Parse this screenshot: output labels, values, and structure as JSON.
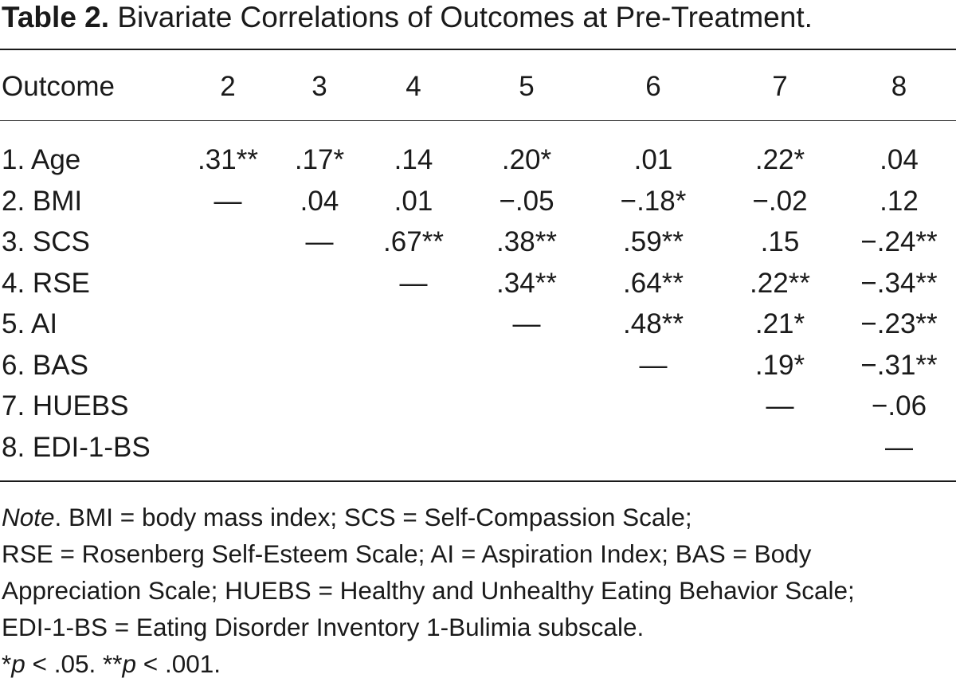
{
  "title": {
    "label": "Table 2.",
    "text": "Bivariate Correlations of Outcomes at Pre-Treatment."
  },
  "table": {
    "header": [
      "Outcome",
      "2",
      "3",
      "4",
      "5",
      "6",
      "7",
      "8"
    ],
    "rows": [
      {
        "outcome": "1. Age",
        "cells": [
          ".31**",
          ".17*",
          ".14",
          ".20*",
          ".01",
          ".22*",
          ".04"
        ]
      },
      {
        "outcome": "2. BMI",
        "cells": [
          "—",
          ".04",
          ".01",
          "−.05",
          "−.18*",
          "−.02",
          ".12"
        ]
      },
      {
        "outcome": "3. SCS",
        "cells": [
          "",
          "—",
          ".67**",
          ".38**",
          ".59**",
          ".15",
          "−.24**"
        ]
      },
      {
        "outcome": "4. RSE",
        "cells": [
          "",
          "",
          "—",
          ".34**",
          ".64**",
          ".22**",
          "−.34**"
        ]
      },
      {
        "outcome": "5. AI",
        "cells": [
          "",
          "",
          "",
          "—",
          ".48**",
          ".21*",
          "−.23**"
        ]
      },
      {
        "outcome": "6. BAS",
        "cells": [
          "",
          "",
          "",
          "",
          "—",
          ".19*",
          "−.31**"
        ]
      },
      {
        "outcome": "7. HUEBS",
        "cells": [
          "",
          "",
          "",
          "",
          "",
          "—",
          "−.06"
        ]
      },
      {
        "outcome": "8. EDI-1-BS",
        "cells": [
          "",
          "",
          "",
          "",
          "",
          "",
          "—"
        ]
      }
    ]
  },
  "note": {
    "label": "Note",
    "line1": ". BMI = body mass index; SCS = Self-Compassion Scale;",
    "line2": "RSE = Rosenberg Self-Esteem Scale; AI = Aspiration Index; BAS = Body",
    "line3": "Appreciation Scale; HUEBS = Healthy and Unhealthy Eating Behavior Scale;",
    "line4": "EDI-1-BS = Eating Disorder Inventory 1-Bulimia subscale.",
    "sig1_star": "*",
    "sig1_p": "p",
    "sig1_rest": " < .05. **",
    "sig2_p": "p",
    "sig2_rest": " < .001."
  }
}
